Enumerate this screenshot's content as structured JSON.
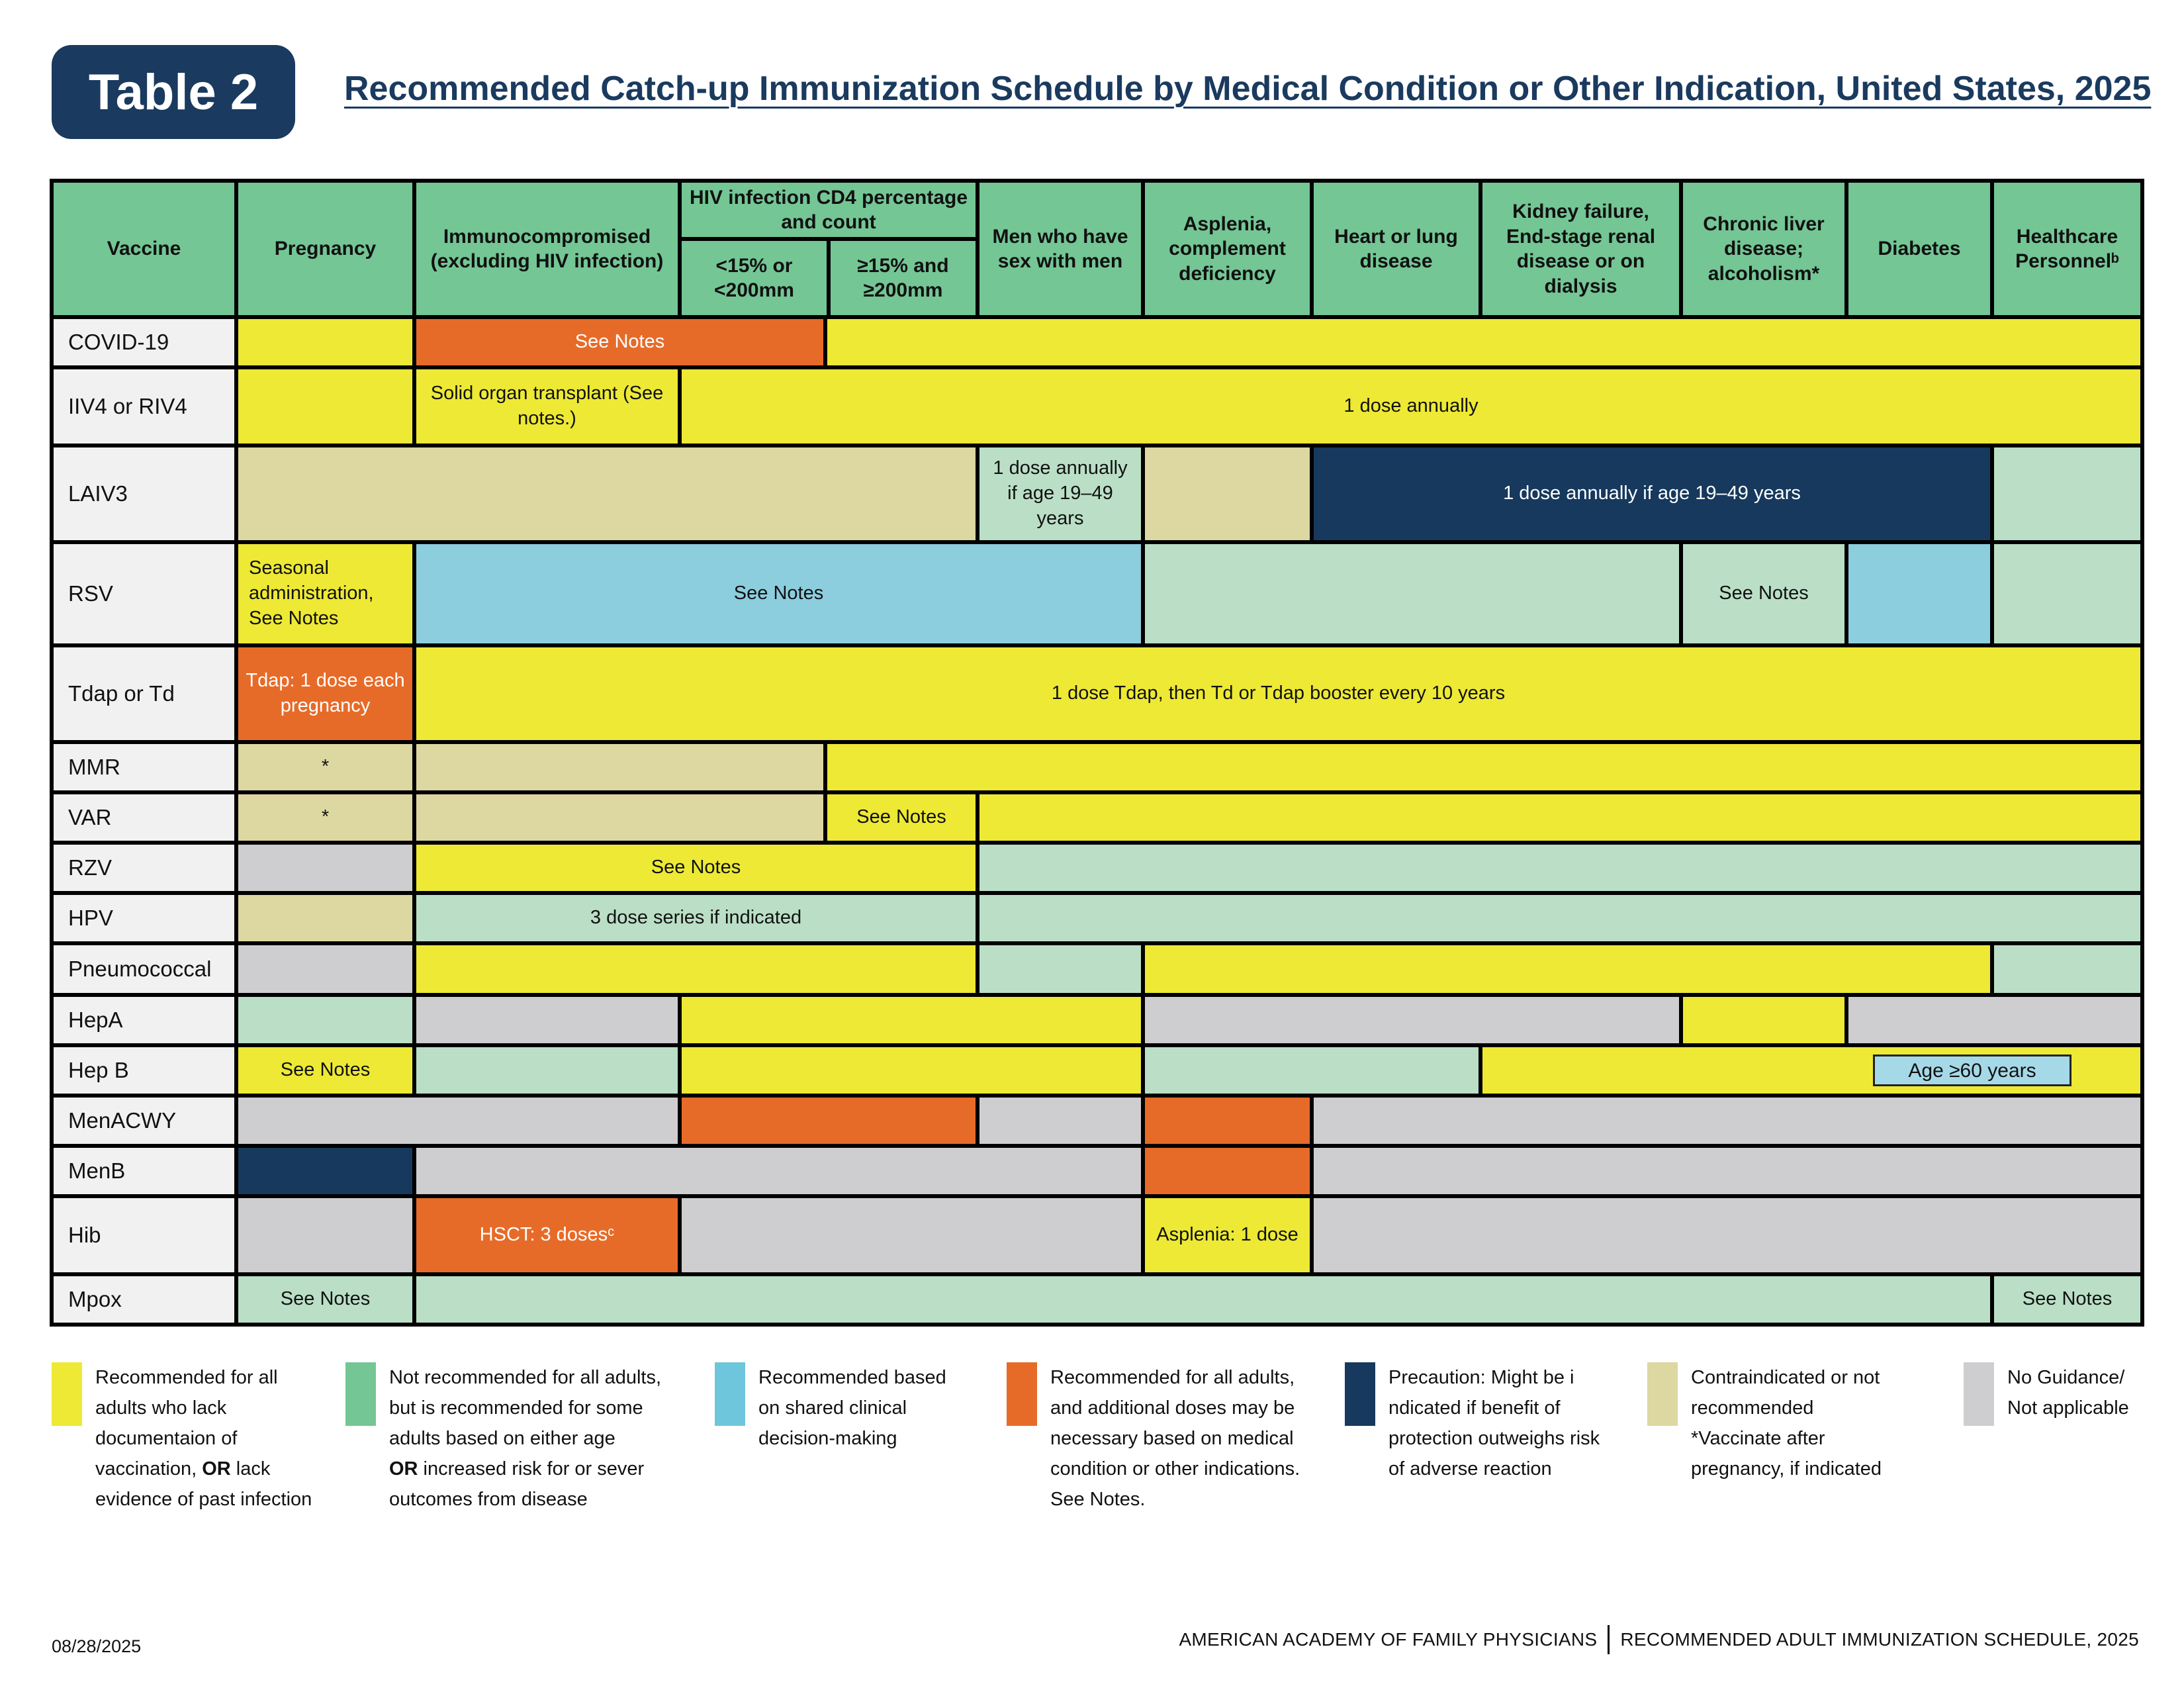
{
  "header": {
    "badge_label": "Table 2",
    "title": "Recommended Catch-up Immunization Schedule by Medical Condition or Other Indication, United States, 2025"
  },
  "colors": {
    "yellow": "#EDE935",
    "orange": "#E76B28",
    "navy": "#16395D",
    "green": "#74C695",
    "lightgreen": "#BADFC6",
    "blue": "#8CCDDE",
    "tan": "#DDD7A1",
    "gray": "#CECED0",
    "legend_green": "#74C695",
    "legend_blue": "#6EC6DC",
    "badge_blue": "#A6D9E7",
    "title_navy": "#1A3A5F",
    "label_bg": "#F1F1F2",
    "border": "#000000"
  },
  "columns": [
    "Vaccine",
    "Pregnancy",
    "Immunocompromised (excluding HIV infection)",
    "HIV infection CD4 percentage and count",
    "<15% or <200mm",
    "≥15% and ≥200mm",
    "Men who have sex with men",
    "Asplenia, complement deficiency",
    "Heart or lung disease",
    "Kidney failure, End-stage renal disease or on dialysis",
    "Chronic liver disease; alcoholism*",
    "Diabetes",
    "Healthcare Personnelᵇ"
  ],
  "table": {
    "rows": [
      {
        "vaccine": "COVID-19",
        "cells": [
          {
            "start": 2,
            "end": 2,
            "color": "yellow"
          },
          {
            "start": 3,
            "end": 4,
            "color": "orange",
            "text": "See Notes"
          },
          {
            "start": 5,
            "end": 12,
            "color": "yellow"
          }
        ]
      },
      {
        "vaccine": "IIV4 or RIV4",
        "cells": [
          {
            "start": 2,
            "end": 2,
            "color": "yellow"
          },
          {
            "start": 3,
            "end": 3,
            "color": "yellow",
            "text": "Solid organ transplant (See notes.)"
          },
          {
            "start": 4,
            "end": 12,
            "color": "yellow",
            "text": "1 dose annually"
          }
        ]
      },
      {
        "vaccine": "LAIV3",
        "cells": [
          {
            "start": 2,
            "end": 5,
            "color": "tan"
          },
          {
            "start": 6,
            "end": 6,
            "color": "lightgreen",
            "text": "1 dose annually if age 19–49 years"
          },
          {
            "start": 7,
            "end": 7,
            "color": "tan"
          },
          {
            "start": 8,
            "end": 11,
            "color": "navy",
            "text": "1 dose annually if age 19–49 years"
          },
          {
            "start": 12,
            "end": 12,
            "color": "lightgreen"
          }
        ]
      },
      {
        "vaccine": "RSV",
        "cells": [
          {
            "start": 2,
            "end": 2,
            "color": "yellow",
            "text": "Seasonal administration, See Notes",
            "align": "left"
          },
          {
            "start": 3,
            "end": 6,
            "color": "blue",
            "text": "See Notes"
          },
          {
            "start": 7,
            "end": 9,
            "color": "lightgreen"
          },
          {
            "start": 10,
            "end": 10,
            "color": "lightgreen",
            "text": "See Notes"
          },
          {
            "start": 11,
            "end": 11,
            "color": "blue"
          },
          {
            "start": 12,
            "end": 12,
            "color": "lightgreen"
          }
        ]
      },
      {
        "vaccine": "Tdap or Td",
        "cells": [
          {
            "start": 2,
            "end": 2,
            "color": "orange",
            "text": "Tdap: 1 dose each pregnancy"
          },
          {
            "start": 3,
            "end": 12,
            "color": "yellow",
            "text": "1 dose Tdap, then Td or Tdap booster every 10 years"
          }
        ]
      },
      {
        "vaccine": "MMR",
        "cells": [
          {
            "start": 2,
            "end": 2,
            "color": "tan",
            "text": "*"
          },
          {
            "start": 3,
            "end": 4,
            "color": "tan"
          },
          {
            "start": 5,
            "end": 12,
            "color": "yellow"
          }
        ]
      },
      {
        "vaccine": "VAR",
        "cells": [
          {
            "start": 2,
            "end": 2,
            "color": "tan",
            "text": "*"
          },
          {
            "start": 3,
            "end": 4,
            "color": "tan"
          },
          {
            "start": 5,
            "end": 5,
            "color": "yellow",
            "text": "See Notes"
          },
          {
            "start": 6,
            "end": 12,
            "color": "yellow"
          }
        ]
      },
      {
        "vaccine": "RZV",
        "cells": [
          {
            "start": 2,
            "end": 2,
            "color": "gray"
          },
          {
            "start": 3,
            "end": 5,
            "color": "yellow",
            "text": "See Notes"
          },
          {
            "start": 6,
            "end": 12,
            "color": "lightgreen"
          }
        ]
      },
      {
        "vaccine": "HPV",
        "cells": [
          {
            "start": 2,
            "end": 2,
            "color": "tan"
          },
          {
            "start": 3,
            "end": 5,
            "color": "lightgreen",
            "text": "3 dose series if indicated"
          },
          {
            "start": 6,
            "end": 12,
            "color": "lightgreen"
          }
        ]
      },
      {
        "vaccine": "Pneumococcal",
        "cells": [
          {
            "start": 2,
            "end": 2,
            "color": "gray"
          },
          {
            "start": 3,
            "end": 5,
            "color": "yellow"
          },
          {
            "start": 6,
            "end": 6,
            "color": "lightgreen"
          },
          {
            "start": 7,
            "end": 11,
            "color": "yellow"
          },
          {
            "start": 12,
            "end": 12,
            "color": "lightgreen"
          }
        ]
      },
      {
        "vaccine": "HepA",
        "cells": [
          {
            "start": 2,
            "end": 2,
            "color": "lightgreen"
          },
          {
            "start": 3,
            "end": 3,
            "color": "gray"
          },
          {
            "start": 4,
            "end": 6,
            "color": "yellow"
          },
          {
            "start": 7,
            "end": 9,
            "color": "gray"
          },
          {
            "start": 10,
            "end": 10,
            "color": "yellow"
          },
          {
            "start": 11,
            "end": 12,
            "color": "gray"
          }
        ]
      },
      {
        "vaccine": "Hep B",
        "cells": [
          {
            "start": 2,
            "end": 2,
            "color": "yellow",
            "text": "See Notes"
          },
          {
            "start": 3,
            "end": 3,
            "color": "lightgreen"
          },
          {
            "start": 4,
            "end": 6,
            "color": "yellow"
          },
          {
            "start": 7,
            "end": 8,
            "color": "lightgreen"
          },
          {
            "start": 9,
            "end": 12,
            "color": "yellow",
            "badge": "Age ≥60 years"
          }
        ]
      },
      {
        "vaccine": "MenACWY",
        "cells": [
          {
            "start": 2,
            "end": 3,
            "color": "gray"
          },
          {
            "start": 4,
            "end": 5,
            "color": "orange"
          },
          {
            "start": 6,
            "end": 6,
            "color": "gray"
          },
          {
            "start": 7,
            "end": 7,
            "color": "orange"
          },
          {
            "start": 8,
            "end": 12,
            "color": "gray"
          }
        ]
      },
      {
        "vaccine": "MenB",
        "cells": [
          {
            "start": 2,
            "end": 2,
            "color": "navy"
          },
          {
            "start": 3,
            "end": 6,
            "color": "gray"
          },
          {
            "start": 7,
            "end": 7,
            "color": "orange"
          },
          {
            "start": 8,
            "end": 12,
            "color": "gray"
          }
        ]
      },
      {
        "vaccine": "Hib",
        "cells": [
          {
            "start": 2,
            "end": 2,
            "color": "gray"
          },
          {
            "start": 3,
            "end": 3,
            "color": "orange",
            "text": "HSCT: 3 dosesᶜ"
          },
          {
            "start": 4,
            "end": 6,
            "color": "gray"
          },
          {
            "start": 7,
            "end": 7,
            "color": "yellow",
            "text": "Asplenia: 1 dose"
          },
          {
            "start": 8,
            "end": 12,
            "color": "gray"
          }
        ]
      },
      {
        "vaccine": "Mpox",
        "cells": [
          {
            "start": 2,
            "end": 2,
            "color": "lightgreen",
            "text": "See Notes"
          },
          {
            "start": 3,
            "end": 11,
            "color": "lightgreen"
          },
          {
            "start": 12,
            "end": 12,
            "color": "lightgreen",
            "text": "See Notes"
          }
        ]
      }
    ]
  },
  "legend": [
    {
      "color": "yellow",
      "lines": [
        [
          {
            "t": "Recommended for all"
          }
        ],
        [
          {
            "t": "adults who lack"
          }
        ],
        [
          {
            "t": "documentaion of"
          }
        ],
        [
          {
            "t": "vaccination, "
          },
          {
            "t": "OR",
            "b": true
          },
          {
            "t": " lack"
          }
        ],
        [
          {
            "t": "evidence of past infection"
          }
        ]
      ]
    },
    {
      "color": "legend_green",
      "lines": [
        [
          {
            "t": "Not recommended for all adults,"
          }
        ],
        [
          {
            "t": "but is recommended for some"
          }
        ],
        [
          {
            "t": "adults based on either age"
          }
        ],
        [
          {
            "t": "OR",
            "b": true
          },
          {
            "t": " increased risk for or sever"
          }
        ],
        [
          {
            "t": "outcomes from disease"
          }
        ]
      ]
    },
    {
      "color": "legend_blue",
      "lines": [
        [
          {
            "t": "Recommended based"
          }
        ],
        [
          {
            "t": "on shared clinical"
          }
        ],
        [
          {
            "t": "decision-making"
          }
        ]
      ]
    },
    {
      "color": "orange",
      "lines": [
        [
          {
            "t": "Recommended for all adults,"
          }
        ],
        [
          {
            "t": "and additional doses may be"
          }
        ],
        [
          {
            "t": "necessary based on medical"
          }
        ],
        [
          {
            "t": "condition or other indications."
          }
        ],
        [
          {
            "t": "See Notes."
          }
        ]
      ]
    },
    {
      "color": "navy",
      "lines": [
        [
          {
            "t": "Precaution: Might be i"
          }
        ],
        [
          {
            "t": "ndicated if benefit of"
          }
        ],
        [
          {
            "t": "protection outweighs risk"
          }
        ],
        [
          {
            "t": "of adverse reaction"
          }
        ]
      ]
    },
    {
      "color": "tan",
      "lines": [
        [
          {
            "t": "Contraindicated or not"
          }
        ],
        [
          {
            "t": "recommended"
          }
        ],
        [
          {
            "t": "*Vaccinate after"
          }
        ],
        [
          {
            "t": "pregnancy, if indicated"
          }
        ]
      ]
    },
    {
      "color": "gray",
      "lines": [
        [
          {
            "t": "No Guidance/"
          }
        ],
        [
          {
            "t": "Not applicable"
          }
        ]
      ]
    }
  ],
  "footer": {
    "date": "08/28/2025",
    "org": "AMERICAN ACADEMY OF FAMILY PHYSICIANS",
    "doc": "RECOMMENDED ADULT IMMUNIZATION SCHEDULE, 2025"
  }
}
